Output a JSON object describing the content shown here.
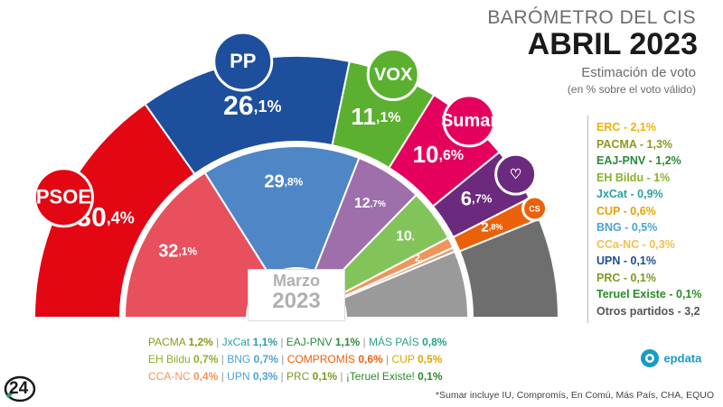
{
  "header": {
    "title_top": "BARÓMETRO DEL CIS",
    "title_main": "ABRIL 2023",
    "subtitle": "Estimación de voto",
    "subtitle2": "(en % sobre el voto válido)"
  },
  "colors": {
    "PSOE": "#e30613",
    "PP": "#1d4f9c",
    "VOX": "#5bb030",
    "Sumar": "#e6005e",
    "Podemos": "#6b2a7d",
    "Cs": "#eb6109",
    "Otros": "#6e6e6e"
  },
  "chart_data": [
    {
      "type": "pie",
      "name": "Abril 2023",
      "slices": [
        {
          "label": "PSOE",
          "value": 30.4,
          "display": "30,4%",
          "int": "30",
          "dec": ",4",
          "logo_text": "PSOE",
          "color": "#e30613"
        },
        {
          "label": "PP",
          "value": 26.1,
          "display": "26,1%",
          "int": "26",
          "dec": ",1",
          "logo_text": "PP",
          "color": "#1d4f9c"
        },
        {
          "label": "VOX",
          "value": 11.1,
          "display": "11,1%",
          "int": "11",
          "dec": ",1",
          "logo_text": "VOX",
          "color": "#5bb030"
        },
        {
          "label": "Sumar",
          "value": 10.6,
          "display": "10,6%",
          "int": "10",
          "dec": ",6",
          "logo_text": "Sumar",
          "color": "#e6005e"
        },
        {
          "label": "Podemos",
          "value": 6.7,
          "display": "6,7%",
          "int": "6",
          "dec": ",7",
          "logo_text": "",
          "color": "#6b2a7d"
        },
        {
          "label": "Cs",
          "value": 2.8,
          "display": "2,8%",
          "int": "2",
          "dec": ",8",
          "logo_text": "CS",
          "color": "#eb6109"
        },
        {
          "label": "Otros",
          "value": 12.3,
          "display": "",
          "color": "#6e6e6e"
        }
      ]
    },
    {
      "type": "pie",
      "name": "Marzo 2023",
      "slices": [
        {
          "label": "PSOE",
          "value": 32.1,
          "display": "32,1%",
          "int": "32",
          "dec": ",1",
          "logo_text": "PSOE",
          "color": "#e8505e"
        },
        {
          "label": "PP",
          "value": 29.8,
          "display": "29,8%",
          "int": "29",
          "dec": ",8",
          "logo_text": "PP",
          "color": "#4f86c6"
        },
        {
          "label": "Podemos",
          "value": 12.7,
          "display": "12,7%",
          "int": "12",
          "dec": ",7",
          "logo_text": "",
          "color": "#9e6fab"
        },
        {
          "label": "VOX",
          "value": 10.0,
          "display": "10,",
          "int": "10",
          "dec": ",",
          "logo_text": "VOX",
          "color": "#82c45a"
        },
        {
          "label": "Cs",
          "value": 2.0,
          "display": "2,",
          "int": "2",
          "dec": ",",
          "logo_text": "CS",
          "color": "#f0945a"
        },
        {
          "label": "Más País",
          "value": 0.8,
          "display": "",
          "color": "#d8a07a"
        },
        {
          "label": "Otros",
          "value": 12.6,
          "display": "",
          "color": "#9a9a9a"
        }
      ]
    }
  ],
  "march_label": {
    "month": "Marzo",
    "year": "2023"
  },
  "legend": [
    {
      "text": "ERC - 2,1%",
      "color": "#f2b200"
    },
    {
      "text": "PACMA - 1,3%",
      "color": "#8a9a1e"
    },
    {
      "text": "EAJ-PNV - 1,2%",
      "color": "#2a8a3e"
    },
    {
      "text": "EH Bildu - 1%",
      "color": "#8bb02a"
    },
    {
      "text": "JxCat - 0,9%",
      "color": "#2aa0a0"
    },
    {
      "text": "CUP - 0,6%",
      "color": "#e3a300"
    },
    {
      "text": "BNG - 0,5%",
      "color": "#4aa3d6"
    },
    {
      "text": "CCa-NC - 0,3%",
      "color": "#f2c050"
    },
    {
      "text": "UPN - 0,1%",
      "color": "#1f4f8a"
    },
    {
      "text": "PRC - 0,1%",
      "color": "#7a9a1e"
    },
    {
      "text": "Teruel Existe - 0,1%",
      "color": "#2a8a2a"
    },
    {
      "text": "Otros partidos - 3,2",
      "color": "#555555"
    }
  ],
  "march_others": {
    "line1": [
      {
        "name": "PACMA",
        "val": "1,2%",
        "color": "#8a9a1e"
      },
      {
        "name": "JxCat",
        "val": "1,1%",
        "color": "#2aa0a0"
      },
      {
        "name": "EAJ-PNV",
        "val": "1,1%",
        "color": "#2a8a3e"
      },
      {
        "name": "MÁS PAÍS",
        "val": "0,8%",
        "color": "#2aa08a"
      }
    ],
    "line2": [
      {
        "name": "EH Bildu",
        "val": "0,7%",
        "color": "#8bb02a"
      },
      {
        "name": "BNG",
        "val": "0,7%",
        "color": "#4aa3d6"
      },
      {
        "name": "COMPROMÍS",
        "val": "0,6%",
        "color": "#eb6109"
      },
      {
        "name": "CUP",
        "val": "0,5%",
        "color": "#e3a300"
      }
    ],
    "line3": [
      {
        "name": "CCA-NC",
        "val": "0,4%",
        "color": "#f0945a"
      },
      {
        "name": "UPN",
        "val": "0,3%",
        "color": "#4aa3d6"
      },
      {
        "name": "PRC",
        "val": "0,1%",
        "color": "#7a9a1e"
      },
      {
        "name": "¡Teruel Existe!",
        "val": "0,1%",
        "color": "#2a8a2a"
      }
    ]
  },
  "brand": {
    "epdata": "epdata",
    "logo24": "24"
  },
  "footnote": "*Sumar incluye IU, Compromís, En Comú, Más País, CHA, EQUO"
}
